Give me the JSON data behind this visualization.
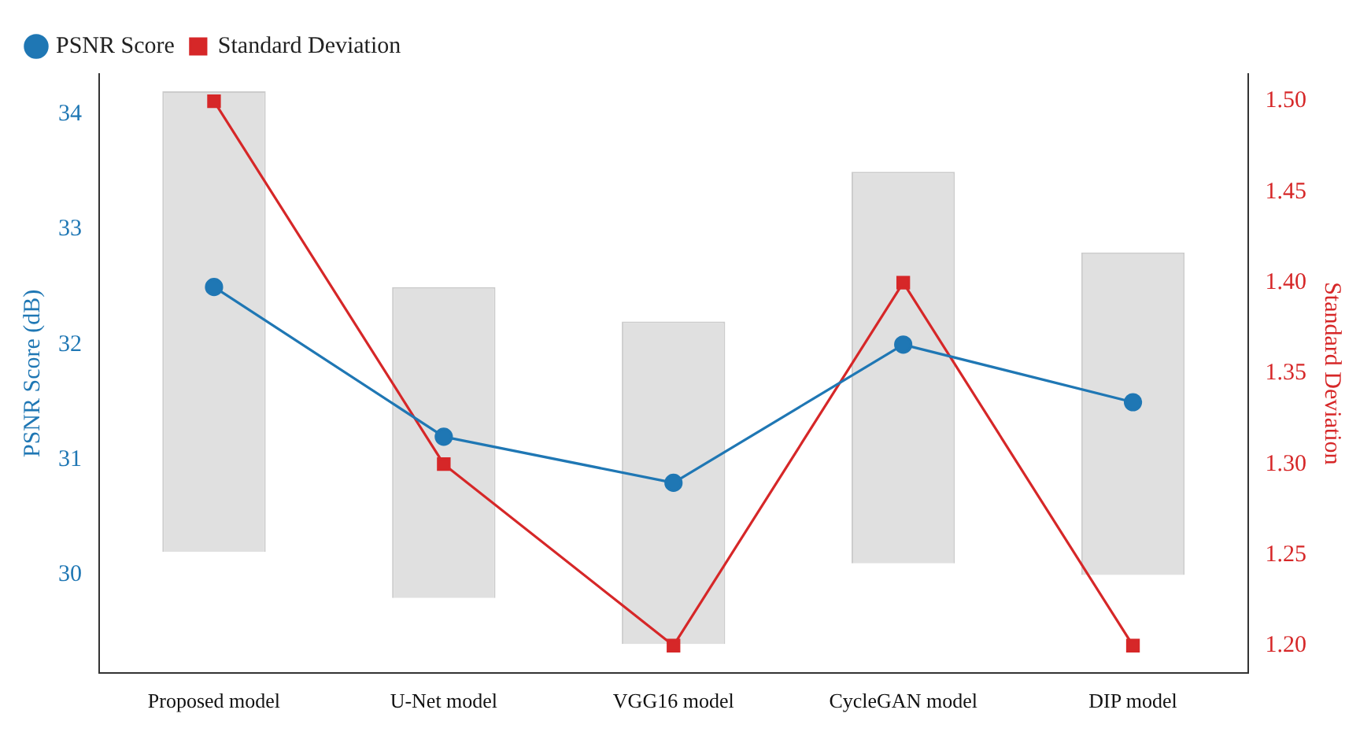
{
  "chart_data": {
    "type": "line",
    "categories": [
      "Proposed model",
      "U-Net model",
      "VGG16 model",
      "CycleGAN model",
      "DIP model"
    ],
    "ylabel": "PSNR Score (dB)",
    "y2label": "Standard Deviation",
    "ylim": [
      29.15,
      34.35
    ],
    "yticks": [
      30,
      31,
      32,
      33,
      34
    ],
    "y2lim": [
      1.185,
      1.515
    ],
    "y2ticks": [
      {
        "value": 1.2,
        "label": "1.20"
      },
      {
        "value": 1.25,
        "label": "1.25"
      },
      {
        "value": 1.3,
        "label": "1.30"
      },
      {
        "value": 1.35,
        "label": "1.35"
      },
      {
        "value": 1.4,
        "label": "1.40"
      },
      {
        "value": 1.45,
        "label": "1.45"
      },
      {
        "value": 1.5,
        "label": "1.50"
      }
    ],
    "grid": false,
    "legend": "top left",
    "series": [
      {
        "type": "bar",
        "color": "#e0e0e0",
        "base": [
          30.2,
          29.8,
          29.4,
          30.1,
          30.0
        ],
        "values": [
          4.0,
          2.7,
          2.8,
          3.4,
          2.8
        ]
      },
      {
        "name": "PSNR Score",
        "color": "#1f77b4",
        "marker": "circle",
        "values": [
          32.5,
          31.2,
          30.8,
          32.0,
          31.5
        ]
      },
      {
        "name": "Standard Deviation",
        "color": "#d62728",
        "marker": "square",
        "axis": "y2",
        "values": [
          1.5,
          1.3,
          1.2,
          1.4,
          1.2
        ]
      }
    ]
  }
}
